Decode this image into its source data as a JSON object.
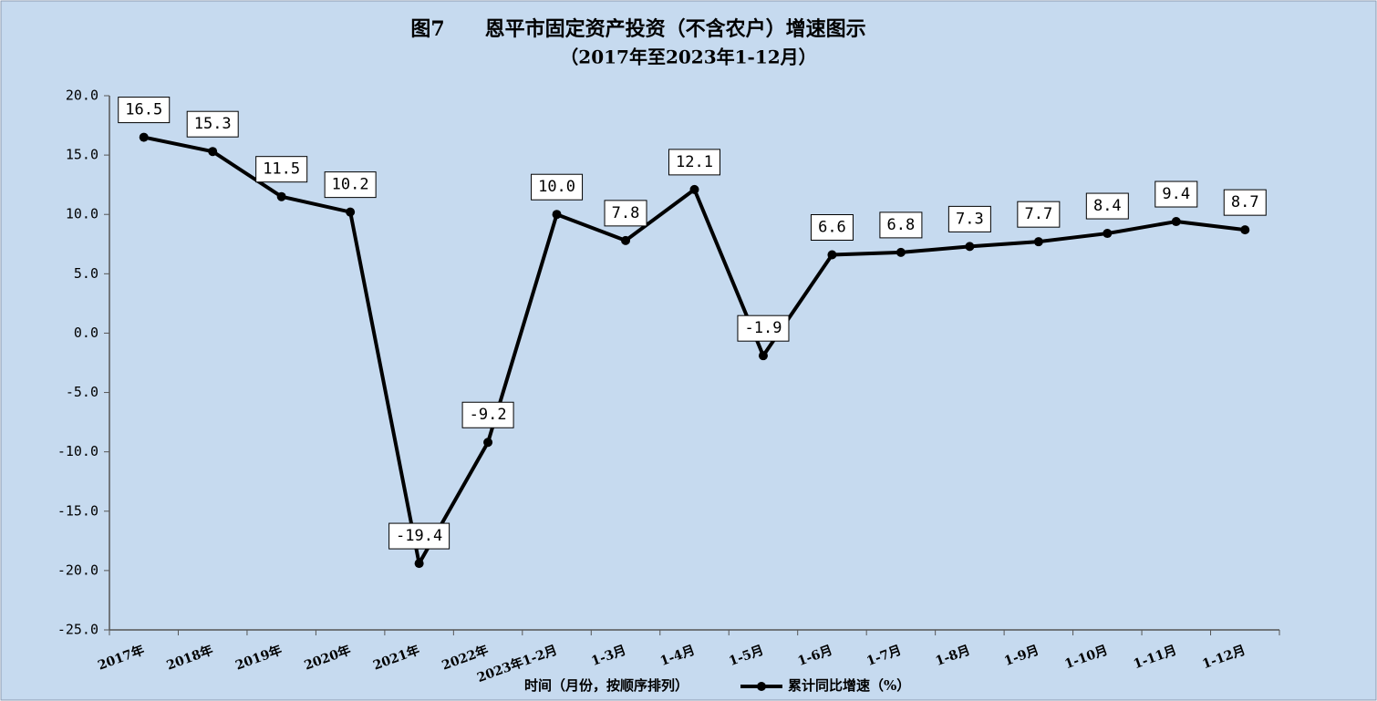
{
  "chart_data": {
    "type": "line",
    "title": "图7　　恩平市固定资产投资（不含农户）增速图示",
    "subtitle": "（2017年至2023年1-12月）",
    "x_label": "时间（月份，按顺序排列）",
    "categories": [
      "2017年",
      "2018年",
      "2019年",
      "2020年",
      "2021年",
      "2022年",
      "2023年1-2月",
      "1-3月",
      "1-4月",
      "1-5月",
      "1-6月",
      "1-7月",
      "1-8月",
      "1-9月",
      "1-10月",
      "1-11月",
      "1-12月"
    ],
    "series": [
      {
        "name": "累计同比增速（%）",
        "color": "#000000",
        "values": [
          16.5,
          15.3,
          11.5,
          10.2,
          -19.4,
          -9.2,
          10.0,
          7.8,
          12.1,
          -1.9,
          6.6,
          6.8,
          7.3,
          7.7,
          8.4,
          9.4,
          8.7
        ],
        "value_labels": [
          "16.5",
          "15.3",
          "11.5",
          "10.2",
          "-19.4",
          "-9.2",
          "10.0",
          "7.8",
          "12.1",
          "-1.9",
          "6.6",
          "6.8",
          "7.3",
          "7.7",
          "8.4",
          "9.4",
          "8.7"
        ]
      }
    ],
    "ylim": [
      -25,
      20
    ],
    "yticks": [
      {
        "value": 20,
        "label": "20.0"
      },
      {
        "value": 15,
        "label": "15.0"
      },
      {
        "value": 10,
        "label": "10.0"
      },
      {
        "value": 5,
        "label": "5.0"
      },
      {
        "value": 0,
        "label": "0.0"
      },
      {
        "value": -5,
        "label": "-5.0"
      },
      {
        "value": -10,
        "label": "-10.0"
      },
      {
        "value": -15,
        "label": "-15.0"
      },
      {
        "value": -20,
        "label": "-20.0"
      },
      {
        "value": -25,
        "label": "-25.0"
      }
    ],
    "legend": "bottom"
  }
}
